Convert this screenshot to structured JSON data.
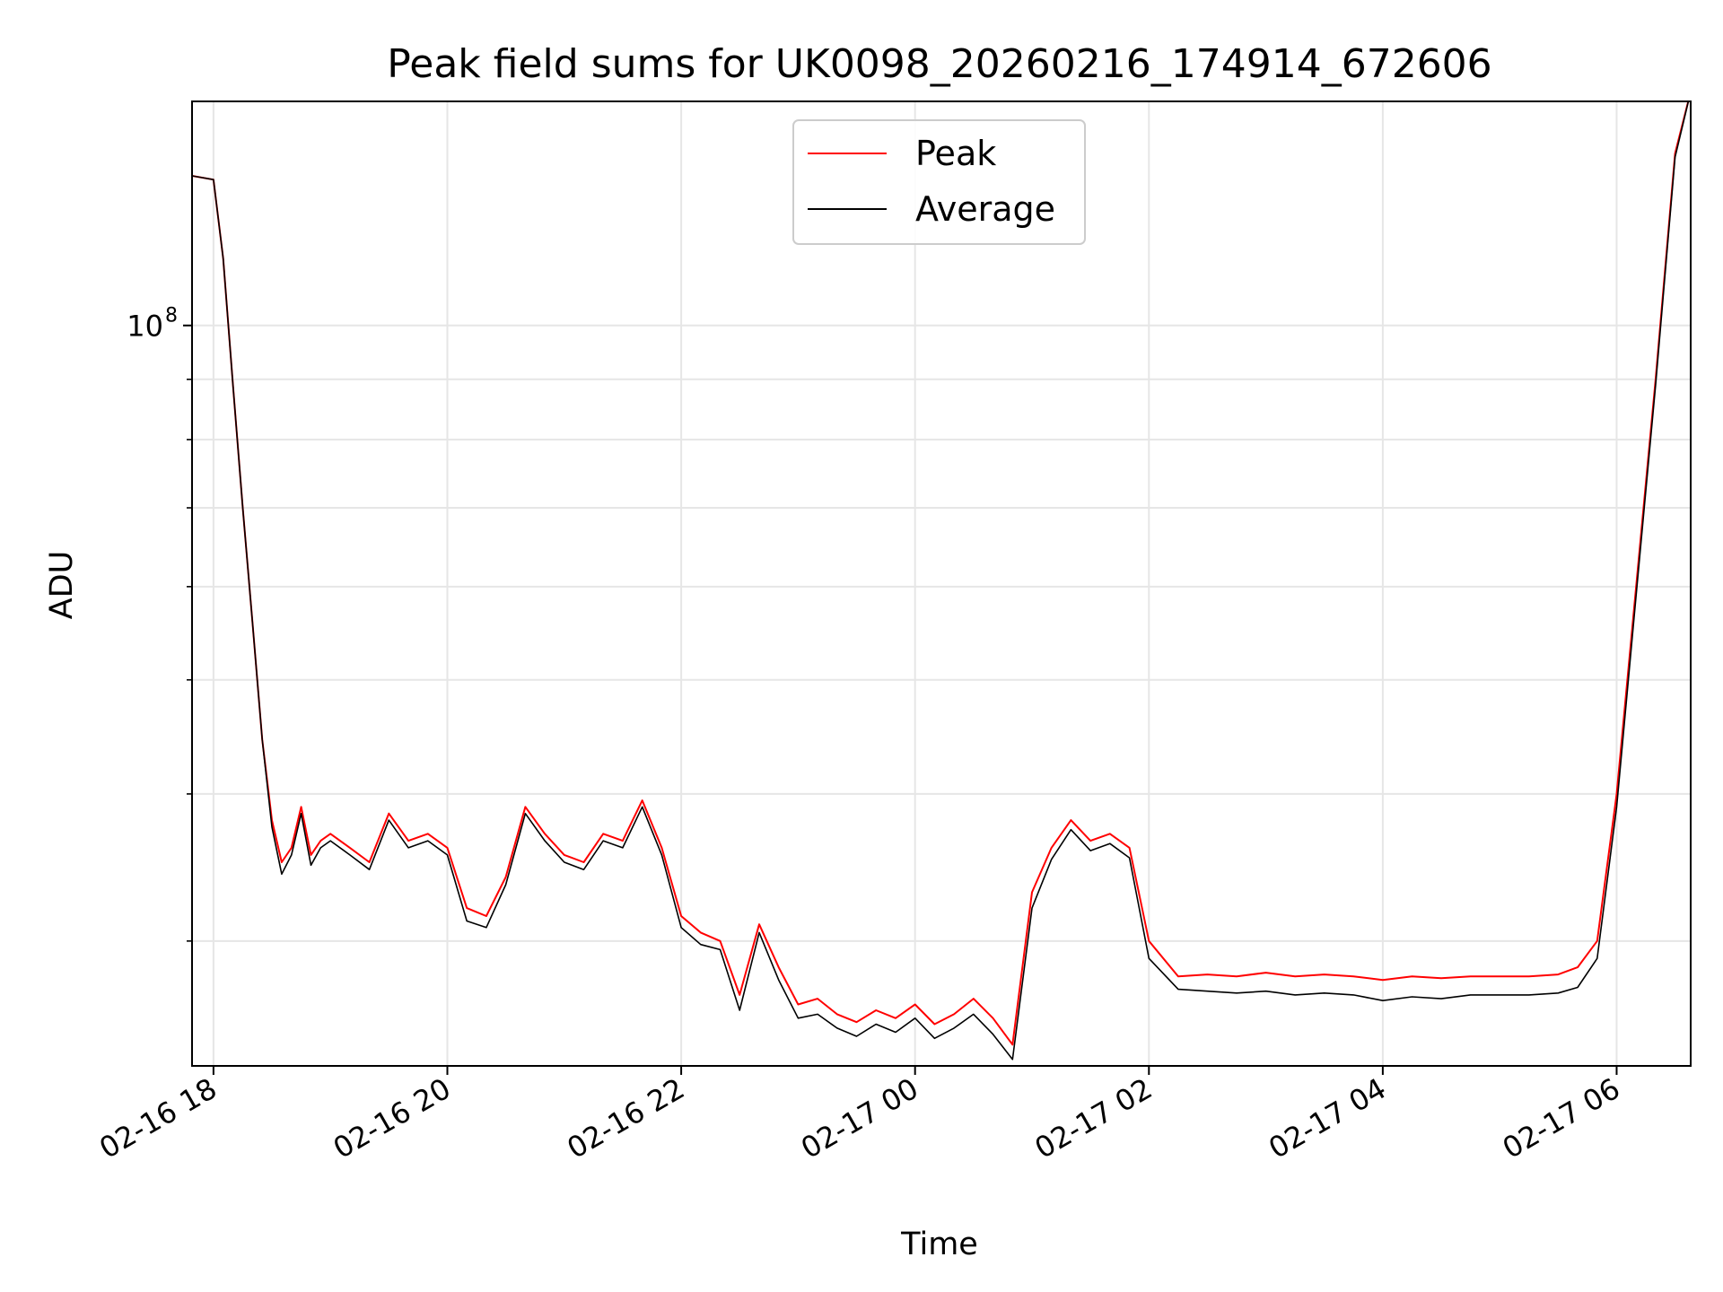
{
  "chart_data": {
    "type": "line",
    "title": "Peak field sums for UK0098_20260216_174914_672606",
    "xlabel": "Time",
    "ylabel": "ADU",
    "y_scale": "log",
    "grid": true,
    "legend_position": "upper center",
    "x_range": [
      "2026-02-16 17:49",
      "2026-02-17 06:38"
    ],
    "ylim": [
      23500000,
      155000000
    ],
    "y_major_tick": {
      "value": 100000000,
      "label": "10",
      "exponent": "8"
    },
    "y_minor_ticks": [
      30000000,
      40000000,
      50000000,
      60000000,
      70000000,
      80000000,
      90000000,
      200000000
    ],
    "x_ticks": [
      {
        "t": "2026-02-16 18:00",
        "label": "02-16 18"
      },
      {
        "t": "2026-02-16 20:00",
        "label": "02-16 20"
      },
      {
        "t": "2026-02-16 22:00",
        "label": "02-16 22"
      },
      {
        "t": "2026-02-17 00:00",
        "label": "02-17 00"
      },
      {
        "t": "2026-02-17 02:00",
        "label": "02-17 02"
      },
      {
        "t": "2026-02-17 04:00",
        "label": "02-17 04"
      },
      {
        "t": "2026-02-17 06:00",
        "label": "02-17 06"
      }
    ],
    "series": [
      {
        "name": "Peak",
        "color": "#ff0000"
      },
      {
        "name": "Average",
        "color": "#000000"
      }
    ],
    "x": [
      "2026-02-16 17:49",
      "2026-02-16 18:00",
      "2026-02-16 18:05",
      "2026-02-16 18:10",
      "2026-02-16 18:15",
      "2026-02-16 18:20",
      "2026-02-16 18:25",
      "2026-02-16 18:30",
      "2026-02-16 18:35",
      "2026-02-16 18:40",
      "2026-02-16 18:45",
      "2026-02-16 18:50",
      "2026-02-16 18:55",
      "2026-02-16 19:00",
      "2026-02-16 19:10",
      "2026-02-16 19:20",
      "2026-02-16 19:30",
      "2026-02-16 19:40",
      "2026-02-16 19:50",
      "2026-02-16 20:00",
      "2026-02-16 20:10",
      "2026-02-16 20:20",
      "2026-02-16 20:30",
      "2026-02-16 20:40",
      "2026-02-16 20:50",
      "2026-02-16 21:00",
      "2026-02-16 21:10",
      "2026-02-16 21:20",
      "2026-02-16 21:30",
      "2026-02-16 21:40",
      "2026-02-16 21:50",
      "2026-02-16 22:00",
      "2026-02-16 22:10",
      "2026-02-16 22:20",
      "2026-02-16 22:30",
      "2026-02-16 22:40",
      "2026-02-16 22:50",
      "2026-02-16 23:00",
      "2026-02-16 23:10",
      "2026-02-16 23:20",
      "2026-02-16 23:30",
      "2026-02-16 23:40",
      "2026-02-16 23:50",
      "2026-02-17 00:00",
      "2026-02-17 00:10",
      "2026-02-17 00:20",
      "2026-02-17 00:30",
      "2026-02-17 00:40",
      "2026-02-17 00:50",
      "2026-02-17 01:00",
      "2026-02-17 01:10",
      "2026-02-17 01:20",
      "2026-02-17 01:30",
      "2026-02-17 01:40",
      "2026-02-17 01:50",
      "2026-02-17 02:00",
      "2026-02-17 02:15",
      "2026-02-17 02:30",
      "2026-02-17 02:45",
      "2026-02-17 03:00",
      "2026-02-17 03:15",
      "2026-02-17 03:30",
      "2026-02-17 03:45",
      "2026-02-17 04:00",
      "2026-02-17 04:15",
      "2026-02-17 04:30",
      "2026-02-17 04:45",
      "2026-02-17 05:00",
      "2026-02-17 05:15",
      "2026-02-17 05:30",
      "2026-02-17 05:40",
      "2026-02-17 05:50",
      "2026-02-17 06:00",
      "2026-02-17 06:10",
      "2026-02-17 06:20",
      "2026-02-17 06:30",
      "2026-02-17 06:38"
    ],
    "peak": [
      134000000,
      133000000,
      114000000,
      89000000,
      70000000,
      56000000,
      44500000,
      38000000,
      35000000,
      36000000,
      39000000,
      35500000,
      36500000,
      37000000,
      36000000,
      35000000,
      38500000,
      36500000,
      37000000,
      36000000,
      32000000,
      31500000,
      34000000,
      39000000,
      37000000,
      35500000,
      35000000,
      37000000,
      36500000,
      39500000,
      36000000,
      31500000,
      30500000,
      30000000,
      27000000,
      31000000,
      28500000,
      26500000,
      26800000,
      26000000,
      25600000,
      26200000,
      25800000,
      26500000,
      25500000,
      26000000,
      26800000,
      25800000,
      24500000,
      33000000,
      36000000,
      38000000,
      36500000,
      37000000,
      36000000,
      30000000,
      28000000,
      28100000,
      28000000,
      28200000,
      28000000,
      28100000,
      28000000,
      27800000,
      28000000,
      27900000,
      28000000,
      28000000,
      28000000,
      28100000,
      28500000,
      30000000,
      40000000,
      60000000,
      90000000,
      140000000,
      158000000
    ],
    "average": [
      134000000,
      133000000,
      114000000,
      89000000,
      70000000,
      56000000,
      44500000,
      37500000,
      34200000,
      35500000,
      38500000,
      34800000,
      36000000,
      36500000,
      35500000,
      34500000,
      38000000,
      36000000,
      36500000,
      35500000,
      31200000,
      30800000,
      33500000,
      38500000,
      36500000,
      35000000,
      34500000,
      36500000,
      36000000,
      39000000,
      35500000,
      30800000,
      29800000,
      29500000,
      26200000,
      30500000,
      27800000,
      25800000,
      26000000,
      25300000,
      24900000,
      25500000,
      25100000,
      25800000,
      24800000,
      25300000,
      26000000,
      25000000,
      23800000,
      32000000,
      35200000,
      37300000,
      35800000,
      36300000,
      35300000,
      29000000,
      27300000,
      27200000,
      27100000,
      27200000,
      27000000,
      27100000,
      27000000,
      26700000,
      26900000,
      26800000,
      27000000,
      27000000,
      27000000,
      27100000,
      27400000,
      29000000,
      39000000,
      59000000,
      89000000,
      139000000,
      158000000
    ]
  }
}
